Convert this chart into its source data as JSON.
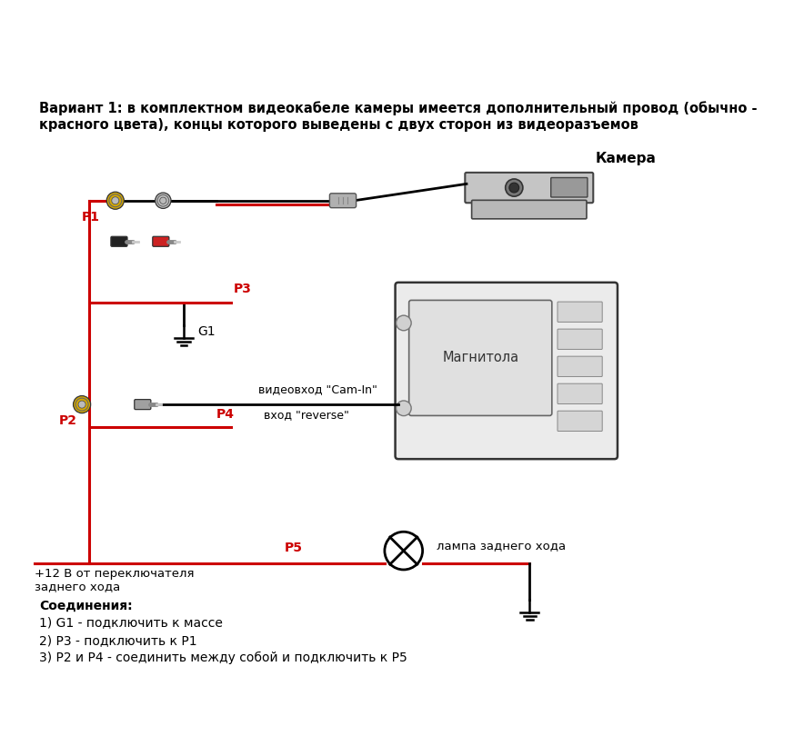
{
  "bg": "#ffffff",
  "title": "Вариант 1: в комплектном видеокабеле камеры имеется дополнительный провод (обычно -\nкрасного цвета), концы которого выведены с двух сторон из видеоразъемов",
  "label_camera": "Камера",
  "label_magnitola": "Магнитола",
  "label_videovhod": "видеовход \"Cam-In\"",
  "label_reverse": "вход \"reverse\"",
  "label_lampa": "лампа заднего хода",
  "label_12v_line1": "+12 В от переключателя",
  "label_12v_line2": "заднего хода",
  "label_P1": "P1",
  "label_P2": "P2",
  "label_P3": "P3",
  "label_P4": "P4",
  "label_P5": "P5",
  "label_G1": "G1",
  "conn_title": "Соединения:",
  "conn1": "1) G1 - подключить к массе",
  "conn2": "2) Р3 - подключить к Р1",
  "conn3": "3) Р2 и Р4 - соединить между собой и подключить к Р5",
  "c_yellow": "#d4a800",
  "c_red_wire": "#cc0000",
  "c_black": "#111111",
  "c_gray": "#888888",
  "c_lightgray": "#cccccc",
  "c_darkgray": "#555555",
  "c_device": "#e0e0e0",
  "c_red_plug": "#cc2222",
  "c_black_plug": "#222222",
  "lw_black": 2.0,
  "lw_red": 2.2
}
